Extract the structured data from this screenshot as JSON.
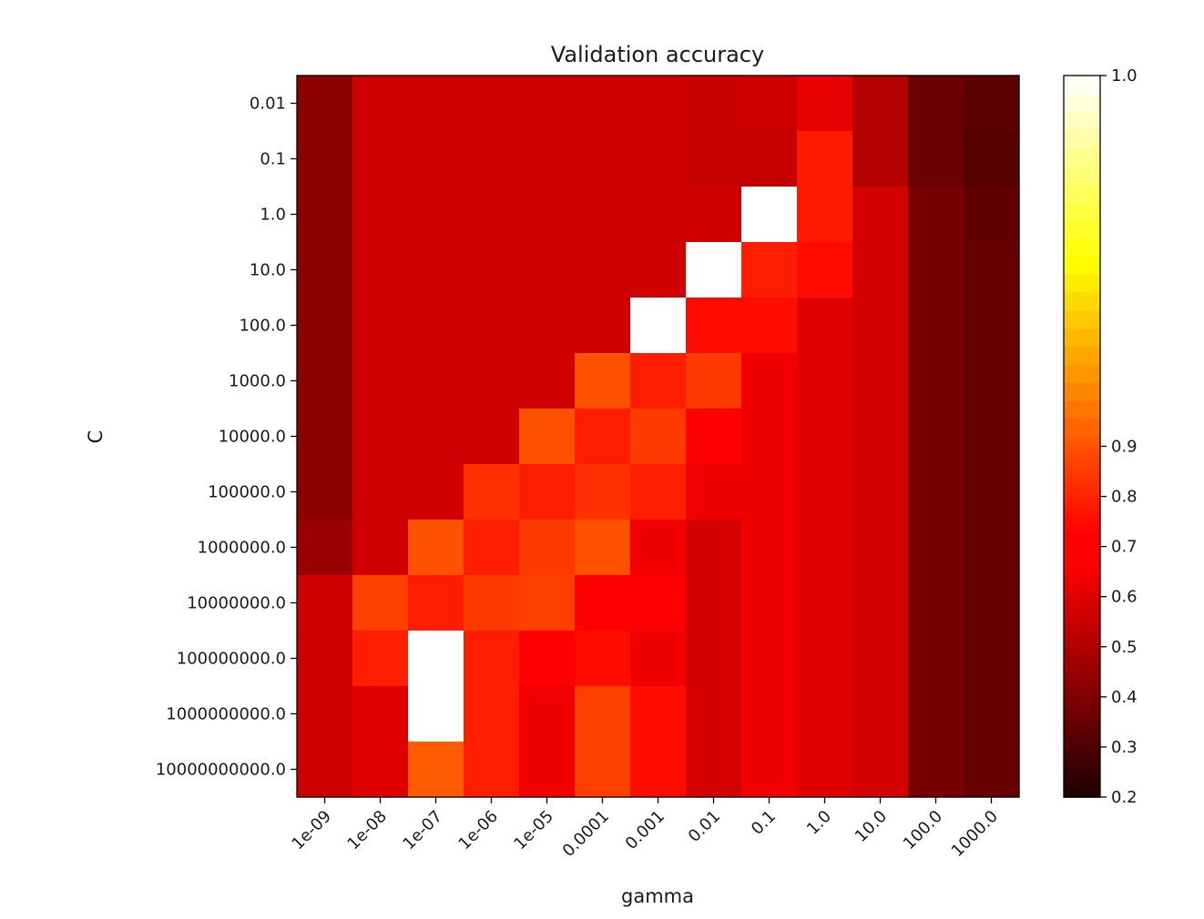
{
  "chart_data": {
    "type": "heatmap",
    "title": "Validation accuracy",
    "xlabel": "gamma",
    "ylabel": "C",
    "x_categories": [
      "1e-09",
      "1e-08",
      "1e-07",
      "1e-06",
      "1e-05",
      "0.0001",
      "0.001",
      "0.01",
      "0.1",
      "1.0",
      "10.0",
      "100.0",
      "1000.0"
    ],
    "y_categories": [
      "0.01",
      "0.1",
      "1.0",
      "10.0",
      "100.0",
      "1000.0",
      "10000.0",
      "100000.0",
      "1000000.0",
      "10000000.0",
      "100000000.0",
      "1000000000.0",
      "10000000000.0"
    ],
    "values": [
      [
        0.43,
        0.56,
        0.56,
        0.56,
        0.56,
        0.56,
        0.56,
        0.55,
        0.56,
        0.62,
        0.51,
        0.36,
        0.33
      ],
      [
        0.43,
        0.56,
        0.56,
        0.56,
        0.56,
        0.56,
        0.56,
        0.55,
        0.55,
        0.78,
        0.51,
        0.36,
        0.32
      ],
      [
        0.43,
        0.56,
        0.56,
        0.56,
        0.56,
        0.56,
        0.56,
        0.57,
        1.0,
        0.78,
        0.58,
        0.39,
        0.34
      ],
      [
        0.43,
        0.56,
        0.56,
        0.56,
        0.56,
        0.56,
        0.57,
        1.0,
        0.79,
        0.75,
        0.58,
        0.39,
        0.35
      ],
      [
        0.43,
        0.56,
        0.56,
        0.56,
        0.56,
        0.57,
        1.0,
        0.75,
        0.75,
        0.6,
        0.58,
        0.39,
        0.35
      ],
      [
        0.43,
        0.56,
        0.56,
        0.56,
        0.57,
        0.9,
        0.79,
        0.85,
        0.64,
        0.6,
        0.58,
        0.39,
        0.35
      ],
      [
        0.43,
        0.56,
        0.56,
        0.57,
        0.9,
        0.79,
        0.85,
        0.7,
        0.64,
        0.6,
        0.58,
        0.39,
        0.35
      ],
      [
        0.43,
        0.56,
        0.57,
        0.83,
        0.79,
        0.83,
        0.79,
        0.64,
        0.64,
        0.6,
        0.58,
        0.39,
        0.35
      ],
      [
        0.46,
        0.57,
        0.9,
        0.79,
        0.85,
        0.9,
        0.64,
        0.58,
        0.64,
        0.6,
        0.58,
        0.39,
        0.35
      ],
      [
        0.57,
        0.86,
        0.79,
        0.85,
        0.86,
        0.7,
        0.7,
        0.58,
        0.64,
        0.6,
        0.58,
        0.39,
        0.35
      ],
      [
        0.56,
        0.79,
        1.0,
        0.79,
        0.7,
        0.75,
        0.64,
        0.58,
        0.64,
        0.6,
        0.58,
        0.39,
        0.35
      ],
      [
        0.56,
        0.6,
        1.0,
        0.79,
        0.64,
        0.86,
        0.75,
        0.58,
        0.64,
        0.6,
        0.58,
        0.39,
        0.35
      ],
      [
        0.56,
        0.6,
        0.92,
        0.79,
        0.64,
        0.86,
        0.75,
        0.58,
        0.64,
        0.6,
        0.58,
        0.39,
        0.35
      ]
    ],
    "colormap": "hot",
    "colorbar": {
      "ticks": [
        "0.2",
        "0.3",
        "0.4",
        "0.5",
        "0.6",
        "0.7",
        "0.8",
        "0.9",
        "1.0"
      ],
      "scale": "midpoint-normalized",
      "vmin": 0.2,
      "midpoint": 0.92,
      "vmax": 1.0
    }
  }
}
